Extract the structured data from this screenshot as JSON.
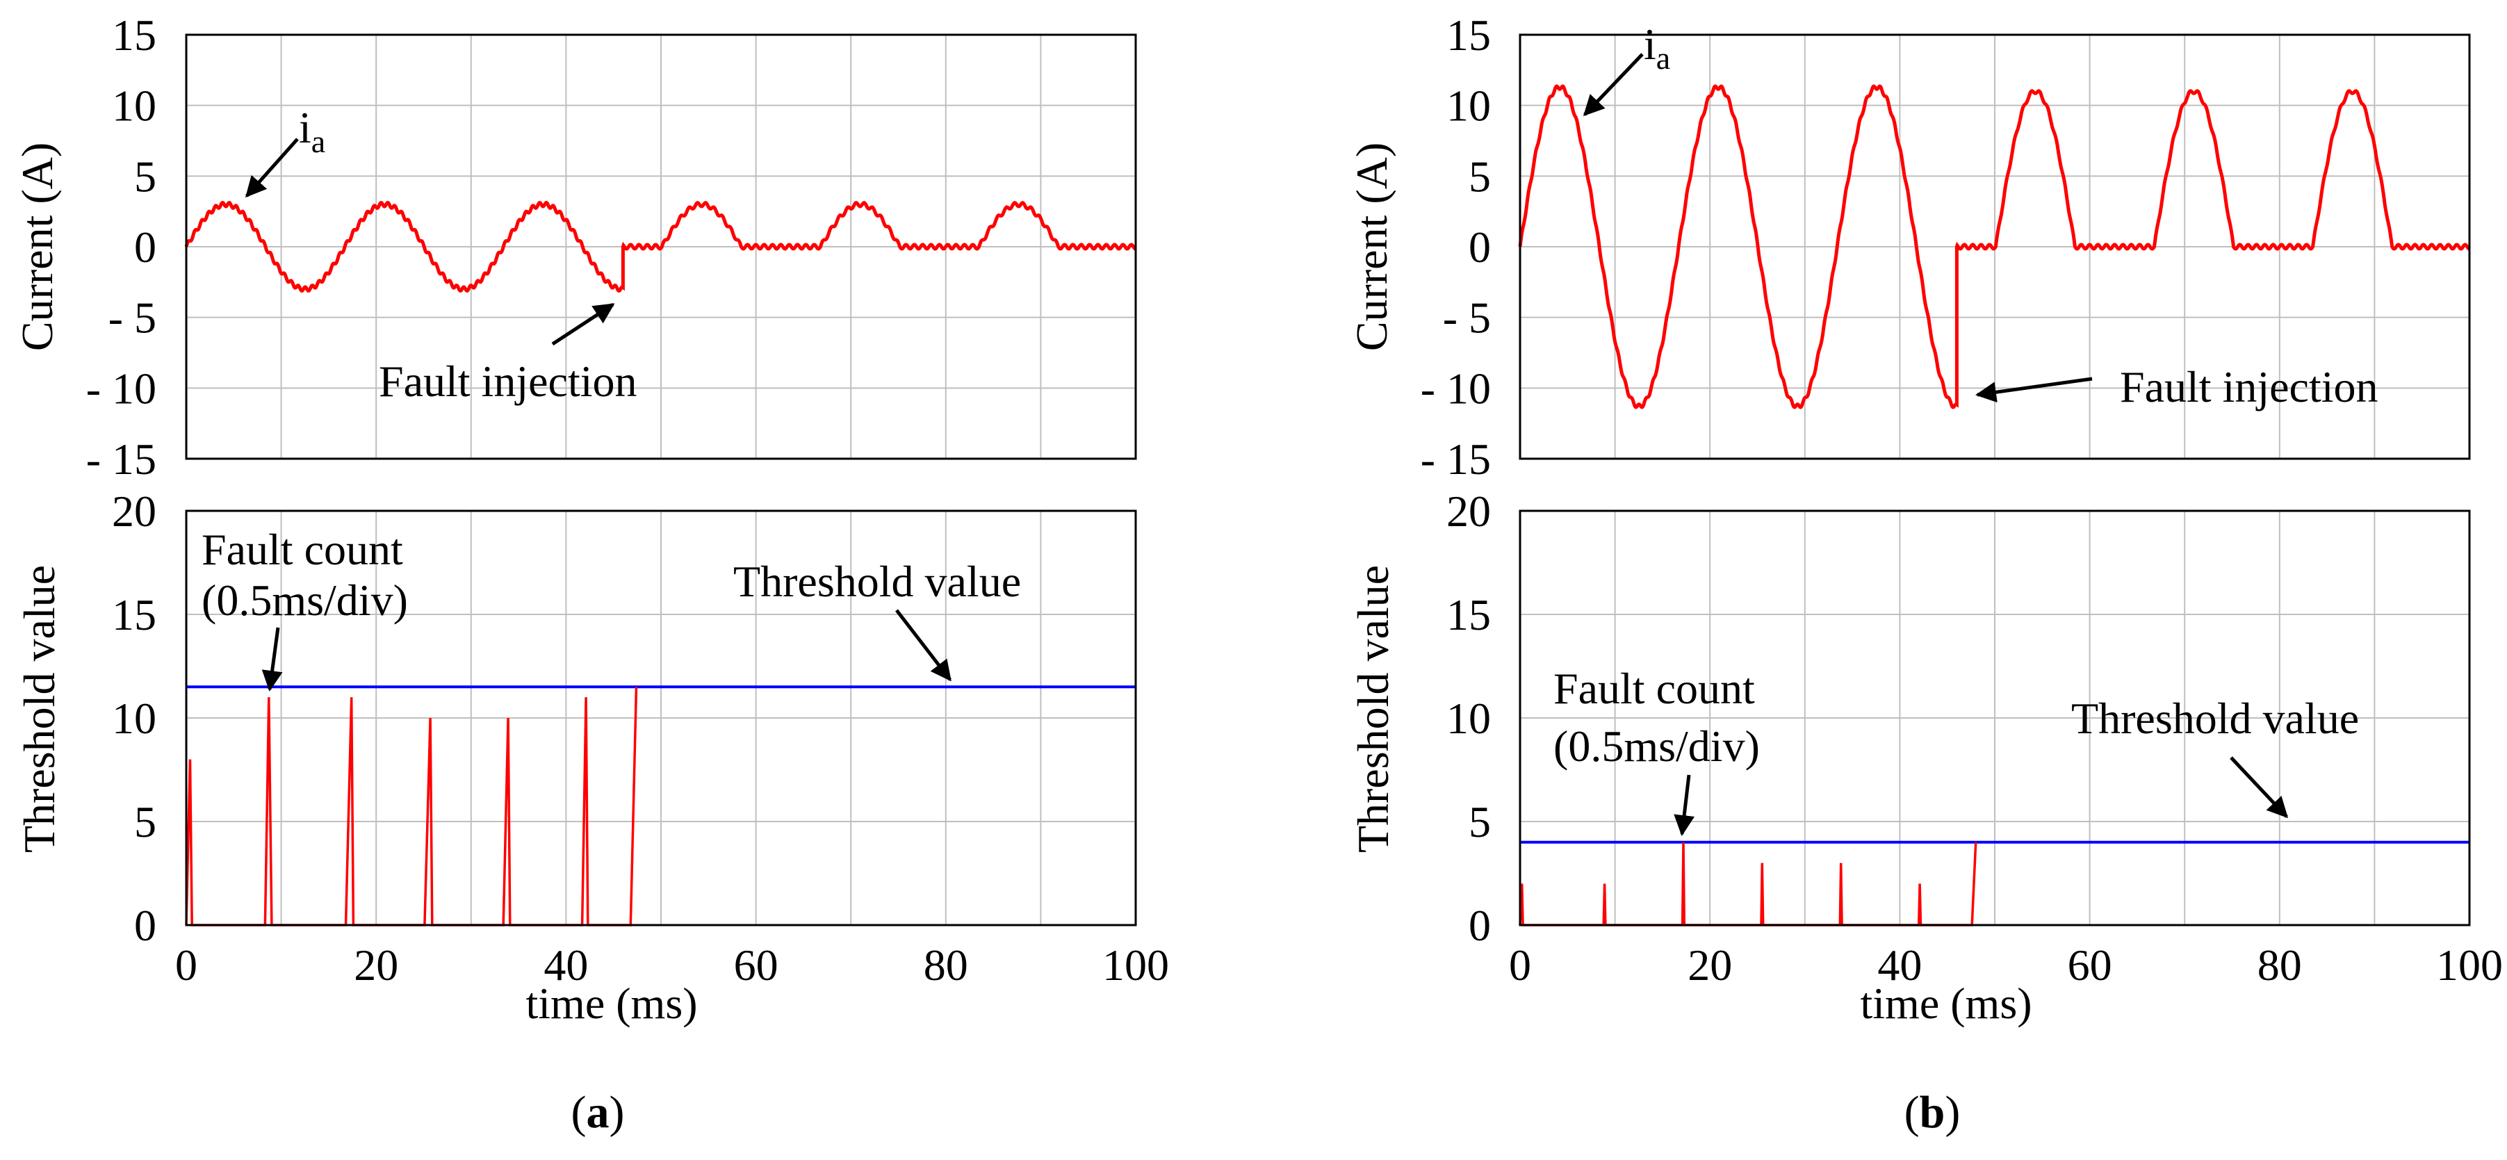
{
  "chart_data": [
    {
      "panel": "a",
      "panel_label": "a",
      "xlabel": "time (ms)",
      "xlim": [
        0,
        100
      ],
      "x_ticks": [
        "0",
        "20",
        "40",
        "60",
        "80",
        "100"
      ],
      "top": {
        "type": "line",
        "ylabel": "Current (A)",
        "ylim": [
          -15,
          15
        ],
        "y_ticks": [
          "15",
          "10",
          "5",
          "0",
          "- 5",
          "- 10",
          "- 15"
        ],
        "series": [
          {
            "name": "i",
            "subscript": "a",
            "color": "#ff0000",
            "description": "Phase current: ~3 A peak sinusoid (period ~16.7 ms) until fault at ~46 ms; afterwards only positive half-waves (~3 A peak)",
            "fault_time_ms": 46,
            "period_ms": 16.7,
            "amplitude_before": 3,
            "amplitude_after": 3
          }
        ],
        "annotations": [
          {
            "text": "i",
            "sub": "a"
          },
          {
            "text": "Fault injection"
          }
        ]
      },
      "bottom": {
        "type": "line",
        "ylabel": "Threshold value",
        "ylim": [
          0,
          20
        ],
        "y_ticks": [
          "20",
          "15",
          "10",
          "5",
          "0"
        ],
        "series": [
          {
            "name": "Fault count (0.5ms/div)",
            "color": "#ff0000",
            "x": [
              0,
              0.4,
              0.6,
              8.3,
              8.7,
              9.0,
              16.8,
              17.4,
              17.6,
              25.1,
              25.7,
              25.9,
              33.4,
              33.9,
              34.1,
              41.7,
              42.1,
              42.3,
              46.8,
              47.4
            ],
            "y": [
              0,
              8,
              0,
              0,
              11,
              0,
              0,
              11,
              0,
              0,
              10,
              0,
              0,
              10,
              0,
              0,
              11,
              0,
              0,
              11.5
            ]
          },
          {
            "name": "Threshold value",
            "color": "#0000ff",
            "x": [
              0,
              100
            ],
            "y": [
              11.5,
              11.5
            ]
          }
        ],
        "annotations": [
          {
            "text": "Fault count"
          },
          {
            "text": "(0.5ms/div)"
          },
          {
            "text": "Threshold value"
          }
        ]
      }
    },
    {
      "panel": "b",
      "panel_label": "b",
      "xlabel": "time (ms)",
      "xlim": [
        0,
        100
      ],
      "x_ticks": [
        "0",
        "20",
        "40",
        "60",
        "80",
        "100"
      ],
      "top": {
        "type": "line",
        "ylabel": "Current (A)",
        "ylim": [
          -15,
          15
        ],
        "y_ticks": [
          "15",
          "10",
          "5",
          "0",
          "- 5",
          "- 10",
          "- 15"
        ],
        "series": [
          {
            "name": "i",
            "subscript": "a",
            "color": "#ff0000",
            "description": "Phase current: ~11.3 A peak sinusoid until fault at ~46 ms; afterwards only positive half-waves (~10-12 A peak)",
            "fault_time_ms": 46,
            "period_ms": 16.7,
            "amplitude_before": 11.3,
            "amplitude_after": 11
          }
        ],
        "annotations": [
          {
            "text": "i",
            "sub": "a"
          },
          {
            "text": "Fault injection"
          }
        ]
      },
      "bottom": {
        "type": "line",
        "ylabel": "Threshold value",
        "ylim": [
          0,
          20
        ],
        "y_ticks": [
          "20",
          "15",
          "10",
          "5",
          "0"
        ],
        "series": [
          {
            "name": "Fault count (0.5ms/div)",
            "color": "#ff0000",
            "x": [
              0,
              0.2,
              0.3,
              8.8,
              8.9,
              9.0,
              17.1,
              17.2,
              17.3,
              25.4,
              25.5,
              25.6,
              33.7,
              33.8,
              33.9,
              42.0,
              42.1,
              42.2,
              47.6,
              48.0
            ],
            "y": [
              0,
              2,
              0,
              0,
              2,
              0,
              0,
              4,
              0,
              0,
              3,
              0,
              0,
              3,
              0,
              0,
              2,
              0,
              0,
              4
            ]
          },
          {
            "name": "Threshold value",
            "color": "#0000ff",
            "x": [
              0,
              100
            ],
            "y": [
              4,
              4
            ]
          }
        ],
        "annotations": [
          {
            "text": "Fault count"
          },
          {
            "text": "(0.5ms/div)"
          },
          {
            "text": "Threshold value"
          }
        ]
      }
    }
  ]
}
